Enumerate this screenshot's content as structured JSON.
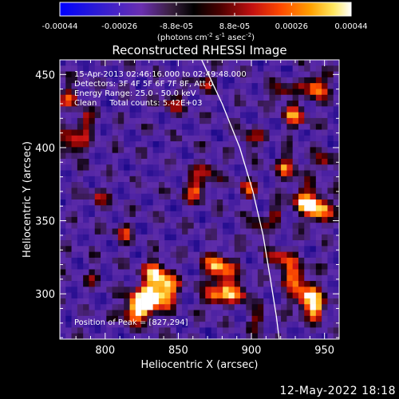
{
  "colorbar": {
    "tick_labels": [
      "-0.00044",
      "-0.00026",
      "-8.8e-05",
      "8.8e-05",
      "0.00026",
      "0.00044"
    ],
    "tick_values": [
      -0.00044,
      -0.00026,
      -8.8e-05,
      8.8e-05,
      0.00026,
      0.00044
    ],
    "range": [
      -0.00044,
      0.00044
    ],
    "units_prefix": "(photons cm",
    "units_exp1": "-2",
    "units_mid": " s",
    "units_exp2": "-1",
    "units_mid2": " asec",
    "units_exp3": "-2",
    "units_suffix": ")"
  },
  "annotations": {
    "time_range": "15-Apr-2013 02:46:16.000 to 02:49:48.000",
    "detectors": "Detectors: 3F 4F 5F 6F 7F 8F, Att 0",
    "energy": "Energy Range: 25.0 - 50.0 keV",
    "clean": "Clean     Total counts: 5.42E+03",
    "peak": "Position of Peak = [827,294]"
  },
  "footer_date": "12-May-2022 18:18",
  "chart_data": {
    "type": "heatmap",
    "title": "Reconstructed RHESSI Image",
    "xlabel": "Heliocentric X (arcsec)",
    "ylabel": "Heliocentric Y (arcsec)",
    "xlim": [
      769,
      960
    ],
    "ylim": [
      269,
      460
    ],
    "x_ticks": [
      800,
      850,
      900,
      950
    ],
    "x_tick_labels": [
      "800",
      "850",
      "900",
      "950"
    ],
    "y_ticks": [
      300,
      350,
      400,
      450
    ],
    "y_tick_labels": [
      "300",
      "350",
      "400",
      "450"
    ],
    "colormap": "blue-purple-red-yellow-white",
    "peak_position": [
      827,
      294
    ],
    "limb_curve": [
      [
        866,
        460
      ],
      [
        880,
        430
      ],
      [
        892,
        400
      ],
      [
        901,
        370
      ],
      [
        908,
        340
      ],
      [
        913,
        310
      ],
      [
        917,
        285
      ],
      [
        919,
        269
      ]
    ],
    "hot_spots": [
      {
        "x": 827,
        "y": 294,
        "v": 1.0,
        "r": 8
      },
      {
        "x": 840,
        "y": 303,
        "v": 0.85,
        "r": 7
      },
      {
        "x": 834,
        "y": 316,
        "v": 0.6,
        "r": 6
      },
      {
        "x": 818,
        "y": 287,
        "v": 0.45,
        "r": 5
      },
      {
        "x": 878,
        "y": 318,
        "v": 0.75,
        "r": 7
      },
      {
        "x": 882,
        "y": 303,
        "v": 0.55,
        "r": 6
      },
      {
        "x": 873,
        "y": 296,
        "v": 0.55,
        "r": 5
      },
      {
        "x": 893,
        "y": 300,
        "v": 0.5,
        "r": 5
      },
      {
        "x": 938,
        "y": 297,
        "v": 0.8,
        "r": 7
      },
      {
        "x": 930,
        "y": 312,
        "v": 0.6,
        "r": 6
      },
      {
        "x": 920,
        "y": 323,
        "v": 0.55,
        "r": 6
      },
      {
        "x": 945,
        "y": 288,
        "v": 0.55,
        "r": 5
      },
      {
        "x": 945,
        "y": 358,
        "v": 0.85,
        "r": 7
      },
      {
        "x": 935,
        "y": 366,
        "v": 0.55,
        "r": 6
      },
      {
        "x": 925,
        "y": 387,
        "v": 0.55,
        "r": 6
      },
      {
        "x": 950,
        "y": 390,
        "v": 0.55,
        "r": 5
      },
      {
        "x": 944,
        "y": 442,
        "v": 0.75,
        "r": 6
      },
      {
        "x": 930,
        "y": 422,
        "v": 0.6,
        "r": 6
      },
      {
        "x": 920,
        "y": 438,
        "v": 0.5,
        "r": 5
      },
      {
        "x": 778,
        "y": 403,
        "v": 0.7,
        "r": 6
      },
      {
        "x": 776,
        "y": 435,
        "v": 0.55,
        "r": 5
      },
      {
        "x": 786,
        "y": 418,
        "v": 0.5,
        "r": 5
      },
      {
        "x": 862,
        "y": 372,
        "v": 0.6,
        "r": 6
      },
      {
        "x": 871,
        "y": 385,
        "v": 0.45,
        "r": 5
      },
      {
        "x": 899,
        "y": 405,
        "v": 0.5,
        "r": 5
      },
      {
        "x": 898,
        "y": 372,
        "v": 0.45,
        "r": 5
      },
      {
        "x": 846,
        "y": 432,
        "v": 0.45,
        "r": 5
      },
      {
        "x": 868,
        "y": 445,
        "v": 0.4,
        "r": 5
      },
      {
        "x": 812,
        "y": 342,
        "v": 0.4,
        "r": 5
      },
      {
        "x": 796,
        "y": 366,
        "v": 0.35,
        "r": 5
      },
      {
        "x": 793,
        "y": 312,
        "v": 0.3,
        "r": 4
      },
      {
        "x": 905,
        "y": 345,
        "v": 0.45,
        "r": 5
      },
      {
        "x": 917,
        "y": 355,
        "v": 0.4,
        "r": 4
      },
      {
        "x": 904,
        "y": 282,
        "v": 0.4,
        "r": 5
      }
    ]
  }
}
